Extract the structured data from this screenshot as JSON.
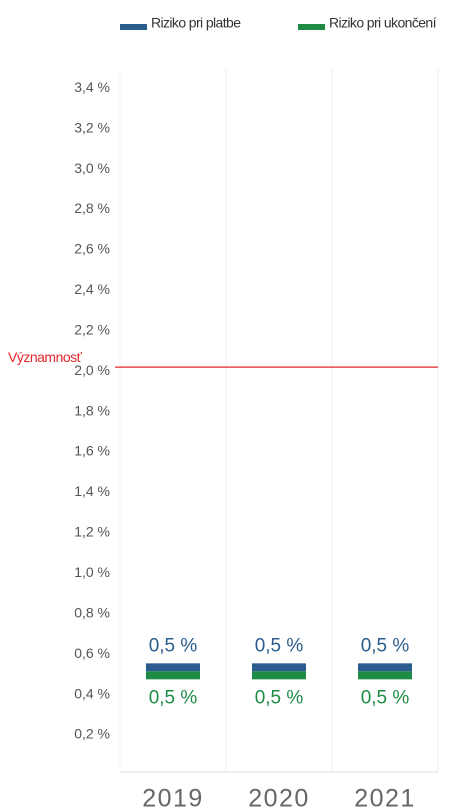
{
  "chart_data": {
    "type": "marker",
    "categories": [
      "2019",
      "2020",
      "2021"
    ],
    "series": [
      {
        "name": "Riziko pri platbe",
        "color": "#2a5d8e",
        "values": [
          0.5,
          0.5,
          0.5
        ],
        "value_labels": [
          "0,5 %",
          "0,5 %",
          "0,5 %"
        ]
      },
      {
        "name": "Riziko pri ukončení",
        "color": "#1f8c46",
        "values": [
          0.5,
          0.5,
          0.5
        ],
        "value_labels": [
          "0,5 %",
          "0,5 %",
          "0,5 %"
        ]
      }
    ],
    "ylim": [
      0,
      3.5
    ],
    "yticks": [
      {
        "value": 0.2,
        "label": "0,2 %"
      },
      {
        "value": 0.4,
        "label": "0,4 %"
      },
      {
        "value": 0.6,
        "label": "0,6 %"
      },
      {
        "value": 0.8,
        "label": "0,8 %"
      },
      {
        "value": 1.0,
        "label": "1,0 %"
      },
      {
        "value": 1.2,
        "label": "1,2 %"
      },
      {
        "value": 1.4,
        "label": "1,4 %"
      },
      {
        "value": 1.6,
        "label": "1,6 %"
      },
      {
        "value": 1.8,
        "label": "1,8 %"
      },
      {
        "value": 2.0,
        "label": "2,0 %"
      },
      {
        "value": 2.2,
        "label": "2,2 %"
      },
      {
        "value": 2.4,
        "label": "2,4 %"
      },
      {
        "value": 2.6,
        "label": "2,6 %"
      },
      {
        "value": 2.8,
        "label": "2,8 %"
      },
      {
        "value": 3.0,
        "label": "3,0 %"
      },
      {
        "value": 3.2,
        "label": "3,2 %"
      },
      {
        "value": 3.4,
        "label": "3,4 %"
      }
    ],
    "threshold": {
      "value": 2.02,
      "label": "Významnosť",
      "color": "#e3262b"
    },
    "grid": "vertical",
    "legend": "top-right"
  }
}
